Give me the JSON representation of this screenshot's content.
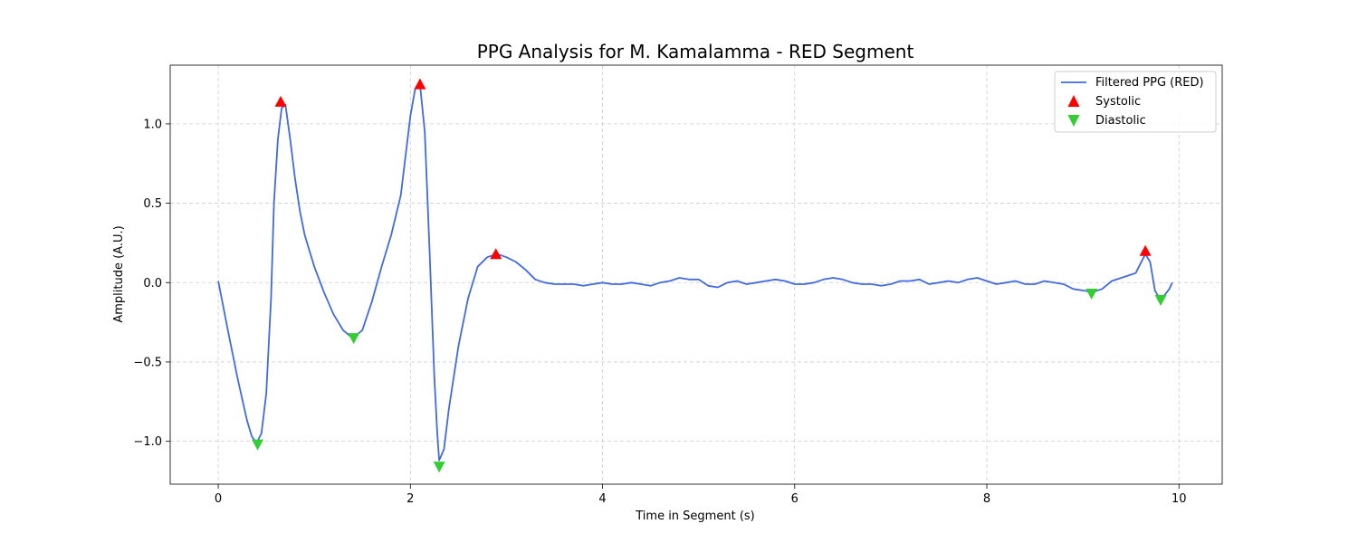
{
  "chart_data": {
    "type": "line",
    "title": "PPG Analysis for M. Kamalamma - RED Segment",
    "xlabel": "Time in Segment (s)",
    "ylabel": "Amplitude (A.U.)",
    "xlim": [
      -0.5,
      10.45
    ],
    "ylim": [
      -1.27,
      1.37
    ],
    "xticks": [
      0,
      2,
      4,
      6,
      8,
      10
    ],
    "xtick_labels": [
      "0",
      "2",
      "4",
      "6",
      "8",
      "10"
    ],
    "yticks": [
      -1.0,
      -0.5,
      0.0,
      0.5,
      1.0
    ],
    "ytick_labels": [
      "−1.0",
      "−0.5",
      "0.0",
      "0.5",
      "1.0"
    ],
    "grid": true,
    "legend_position": "top-right",
    "series": [
      {
        "name": "Filtered PPG (RED)",
        "kind": "line",
        "color": "#4169e1",
        "x": [
          0.0,
          0.1,
          0.2,
          0.3,
          0.35,
          0.4,
          0.45,
          0.5,
          0.55,
          0.58,
          0.62,
          0.66,
          0.7,
          0.75,
          0.8,
          0.85,
          0.9,
          1.0,
          1.1,
          1.2,
          1.3,
          1.4,
          1.5,
          1.6,
          1.7,
          1.8,
          1.9,
          1.95,
          2.0,
          2.05,
          2.1,
          2.15,
          2.2,
          2.25,
          2.28,
          2.3,
          2.35,
          2.4,
          2.5,
          2.6,
          2.7,
          2.8,
          2.9,
          3.0,
          3.1,
          3.2,
          3.3,
          3.4,
          3.5,
          3.6,
          3.7,
          3.8,
          3.9,
          4.0,
          4.1,
          4.2,
          4.3,
          4.4,
          4.5,
          4.6,
          4.7,
          4.8,
          4.9,
          5.0,
          5.1,
          5.2,
          5.3,
          5.4,
          5.5,
          5.6,
          5.7,
          5.8,
          5.9,
          6.0,
          6.1,
          6.2,
          6.3,
          6.4,
          6.5,
          6.6,
          6.7,
          6.8,
          6.9,
          7.0,
          7.1,
          7.2,
          7.3,
          7.4,
          7.5,
          7.6,
          7.7,
          7.8,
          7.9,
          8.0,
          8.1,
          8.2,
          8.3,
          8.4,
          8.5,
          8.6,
          8.7,
          8.8,
          8.9,
          9.0,
          9.1,
          9.2,
          9.3,
          9.4,
          9.5,
          9.55,
          9.6,
          9.65,
          9.7,
          9.75,
          9.8,
          9.85,
          9.9,
          9.93
        ],
        "y": [
          0.01,
          -0.3,
          -0.6,
          -0.87,
          -0.97,
          -1.01,
          -0.95,
          -0.7,
          -0.1,
          0.5,
          0.9,
          1.1,
          1.12,
          0.9,
          0.65,
          0.45,
          0.3,
          0.1,
          -0.06,
          -0.2,
          -0.3,
          -0.35,
          -0.3,
          -0.12,
          0.1,
          0.3,
          0.55,
          0.8,
          1.05,
          1.22,
          1.25,
          0.95,
          0.2,
          -0.6,
          -0.95,
          -1.12,
          -1.05,
          -0.8,
          -0.4,
          -0.1,
          0.1,
          0.16,
          0.18,
          0.16,
          0.13,
          0.08,
          0.02,
          0.0,
          -0.01,
          -0.01,
          -0.01,
          -0.02,
          -0.01,
          -0.0,
          -0.01,
          -0.01,
          -0.0,
          -0.01,
          -0.02,
          0.0,
          0.01,
          0.03,
          0.02,
          0.02,
          -0.02,
          -0.03,
          0.0,
          0.01,
          -0.01,
          0.0,
          0.01,
          0.02,
          0.01,
          -0.01,
          -0.01,
          0.0,
          0.02,
          0.03,
          0.02,
          0.0,
          -0.01,
          -0.01,
          -0.02,
          -0.01,
          0.01,
          0.01,
          0.02,
          -0.01,
          0.0,
          0.01,
          0.0,
          0.02,
          0.03,
          0.01,
          -0.01,
          0.0,
          0.01,
          -0.01,
          -0.01,
          0.01,
          0.0,
          -0.01,
          -0.04,
          -0.05,
          -0.06,
          -0.04,
          0.01,
          0.03,
          0.05,
          0.06,
          0.12,
          0.18,
          0.13,
          -0.05,
          -0.1,
          -0.08,
          -0.04,
          0.0
        ]
      },
      {
        "name": "Systolic",
        "kind": "scatter",
        "marker": "triangle-up",
        "color": "#ff0000",
        "x": [
          0.65,
          2.1,
          2.89,
          9.65
        ],
        "y": [
          1.14,
          1.25,
          0.18,
          0.2
        ]
      },
      {
        "name": "Diastolic",
        "kind": "scatter",
        "marker": "triangle-down",
        "color": "#32cd32",
        "x": [
          0.41,
          1.41,
          2.3,
          9.09,
          9.81
        ],
        "y": [
          -1.02,
          -0.35,
          -1.16,
          -0.07,
          -0.11
        ]
      }
    ]
  }
}
